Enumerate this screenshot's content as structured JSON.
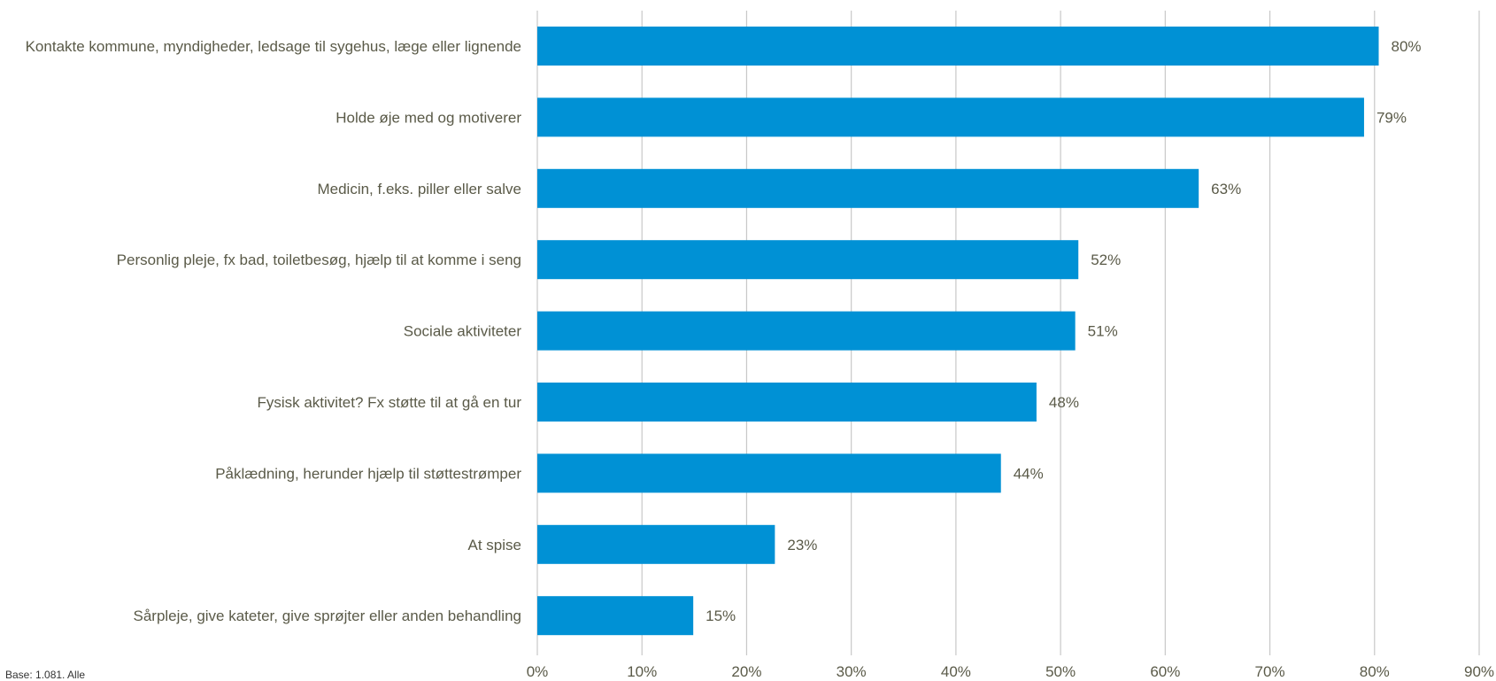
{
  "chart_data": {
    "type": "bar",
    "orientation": "horizontal",
    "categories": [
      "Kontakte kommune, myndigheder, ledsage til sygehus, læge eller lignende",
      "Holde øje med og motiverer",
      "Medicin, f.eks. piller eller salve",
      "Personlig pleje, fx bad, toiletbesøg, hjælp til at komme i seng",
      "Sociale aktiviteter",
      "Fysisk aktivitet? Fx støtte til at gå en tur",
      "Påklædning, herunder hjælp til støttestrømper",
      "At spise",
      "Sårpleje, give kateter, give sprøjter eller anden behandling"
    ],
    "values": [
      80.4,
      79.0,
      63.2,
      51.7,
      51.4,
      47.7,
      44.3,
      22.7,
      14.9
    ],
    "value_labels": [
      "80%",
      "79%",
      "63%",
      "52%",
      "51%",
      "48%",
      "44%",
      "23%",
      "15%"
    ],
    "xlim": [
      0,
      90
    ],
    "xticks": [
      "0%",
      "10%",
      "20%",
      "30%",
      "40%",
      "50%",
      "60%",
      "70%",
      "80%",
      "90%"
    ],
    "grid": true,
    "bar_color": "#0091d5"
  },
  "footnote": "Base: 1.081. Alle"
}
